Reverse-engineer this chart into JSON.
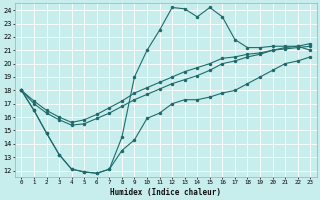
{
  "xlabel": "Humidex (Indice chaleur)",
  "xlim": [
    -0.5,
    23.5
  ],
  "ylim": [
    11.5,
    24.5
  ],
  "yticks": [
    12,
    13,
    14,
    15,
    16,
    17,
    18,
    19,
    20,
    21,
    22,
    23,
    24
  ],
  "xticks": [
    0,
    1,
    2,
    3,
    4,
    5,
    6,
    7,
    8,
    9,
    10,
    11,
    12,
    13,
    14,
    15,
    16,
    17,
    18,
    19,
    20,
    21,
    22,
    23
  ],
  "bg_color": "#c8eded",
  "grid_color": "#ffffff",
  "line_color": "#1f6b6b",
  "line1_x": [
    0,
    1,
    2,
    3,
    4,
    5,
    6,
    7,
    8,
    9,
    10,
    11,
    12,
    13,
    14,
    15,
    16,
    17,
    18,
    19,
    20,
    21,
    22,
    23
  ],
  "line1_y": [
    18.0,
    16.5,
    14.8,
    13.2,
    12.1,
    11.9,
    11.8,
    12.1,
    13.5,
    14.3,
    15.9,
    16.3,
    17.0,
    17.3,
    17.3,
    17.5,
    17.8,
    18.0,
    18.5,
    19.0,
    19.5,
    20.0,
    20.2,
    20.5
  ],
  "line2_x": [
    0,
    1,
    2,
    3,
    4,
    5,
    6,
    7,
    8,
    9,
    10,
    11,
    12,
    13,
    14,
    15,
    16,
    17,
    18,
    19,
    20,
    21,
    22,
    23
  ],
  "line2_y": [
    18.0,
    16.5,
    14.8,
    13.2,
    12.1,
    11.9,
    11.8,
    12.1,
    14.5,
    19.0,
    21.0,
    22.5,
    24.2,
    24.1,
    23.5,
    24.2,
    23.5,
    21.8,
    21.2,
    21.2,
    21.3,
    21.3,
    21.3,
    21.0
  ],
  "line3_x": [
    0,
    1,
    2,
    3,
    4,
    5,
    6,
    7,
    8,
    9,
    10,
    11,
    12,
    13,
    14,
    15,
    16,
    17,
    18,
    19,
    20,
    21,
    22,
    23
  ],
  "line3_y": [
    18.0,
    17.0,
    16.3,
    15.8,
    15.4,
    15.5,
    15.9,
    16.3,
    16.8,
    17.3,
    17.7,
    18.1,
    18.5,
    18.8,
    19.1,
    19.5,
    20.0,
    20.2,
    20.5,
    20.7,
    21.0,
    21.2,
    21.3,
    21.5
  ],
  "line4_x": [
    0,
    1,
    2,
    3,
    4,
    5,
    6,
    7,
    8,
    9,
    10,
    11,
    12,
    13,
    14,
    15,
    16,
    17,
    18,
    19,
    20,
    21,
    22,
    23
  ],
  "line4_y": [
    18.0,
    17.2,
    16.5,
    16.0,
    15.6,
    15.8,
    16.2,
    16.7,
    17.2,
    17.8,
    18.2,
    18.6,
    19.0,
    19.4,
    19.7,
    20.0,
    20.4,
    20.5,
    20.7,
    20.8,
    21.0,
    21.1,
    21.2,
    21.3
  ]
}
